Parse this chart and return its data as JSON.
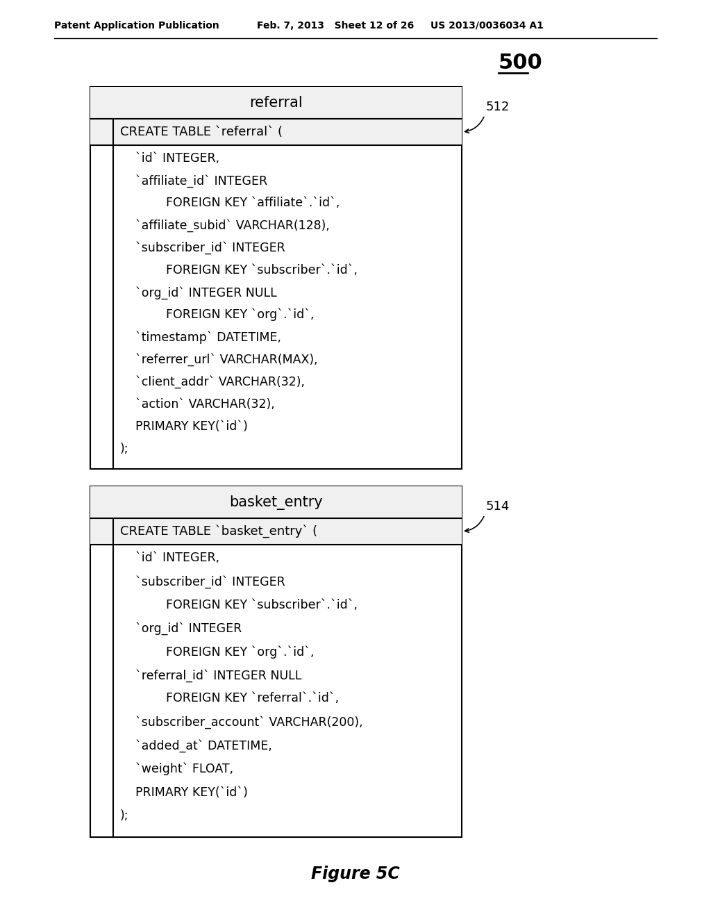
{
  "header_text_left": "Patent Application Publication",
  "header_text_mid": "Feb. 7, 2013   Sheet 12 of 26",
  "header_text_right": "US 2013/0036034 A1",
  "figure_label": "Figure 5C",
  "label_500": "500",
  "label_512": "512",
  "label_514": "514",
  "table1": {
    "title": "referral",
    "create_line": "CREATE TABLE `referral` (",
    "body_lines": [
      "    `id` INTEGER,",
      "    `affiliate_id` INTEGER",
      "            FOREIGN KEY `affiliate`.`id`,",
      "    `affiliate_subid` VARCHAR(128),",
      "    `subscriber_id` INTEGER",
      "            FOREIGN KEY `subscriber`.`id`,",
      "    `org_id` INTEGER NULL",
      "            FOREIGN KEY `org`.`id`,",
      "    `timestamp` DATETIME,",
      "    `referrer_url` VARCHAR(MAX),",
      "    `client_addr` VARCHAR(32),",
      "    `action` VARCHAR(32),",
      "    PRIMARY KEY(`id`)",
      ");"
    ]
  },
  "table2": {
    "title": "basket_entry",
    "create_line": "CREATE TABLE `basket_entry` (",
    "body_lines": [
      "    `id` INTEGER,",
      "    `subscriber_id` INTEGER",
      "            FOREIGN KEY `subscriber`.`id`,",
      "    `org_id` INTEGER",
      "            FOREIGN KEY `org`.`id`,",
      "    `referral_id` INTEGER NULL",
      "            FOREIGN KEY `referral`.`id`,",
      "    `subscriber_account` VARCHAR(200),",
      "    `added_at` DATETIME,",
      "    `weight` FLOAT,",
      "    PRIMARY KEY(`id`)",
      ");"
    ]
  },
  "bg_color": "#ffffff",
  "box_border_color": "#000000",
  "text_color": "#000000"
}
